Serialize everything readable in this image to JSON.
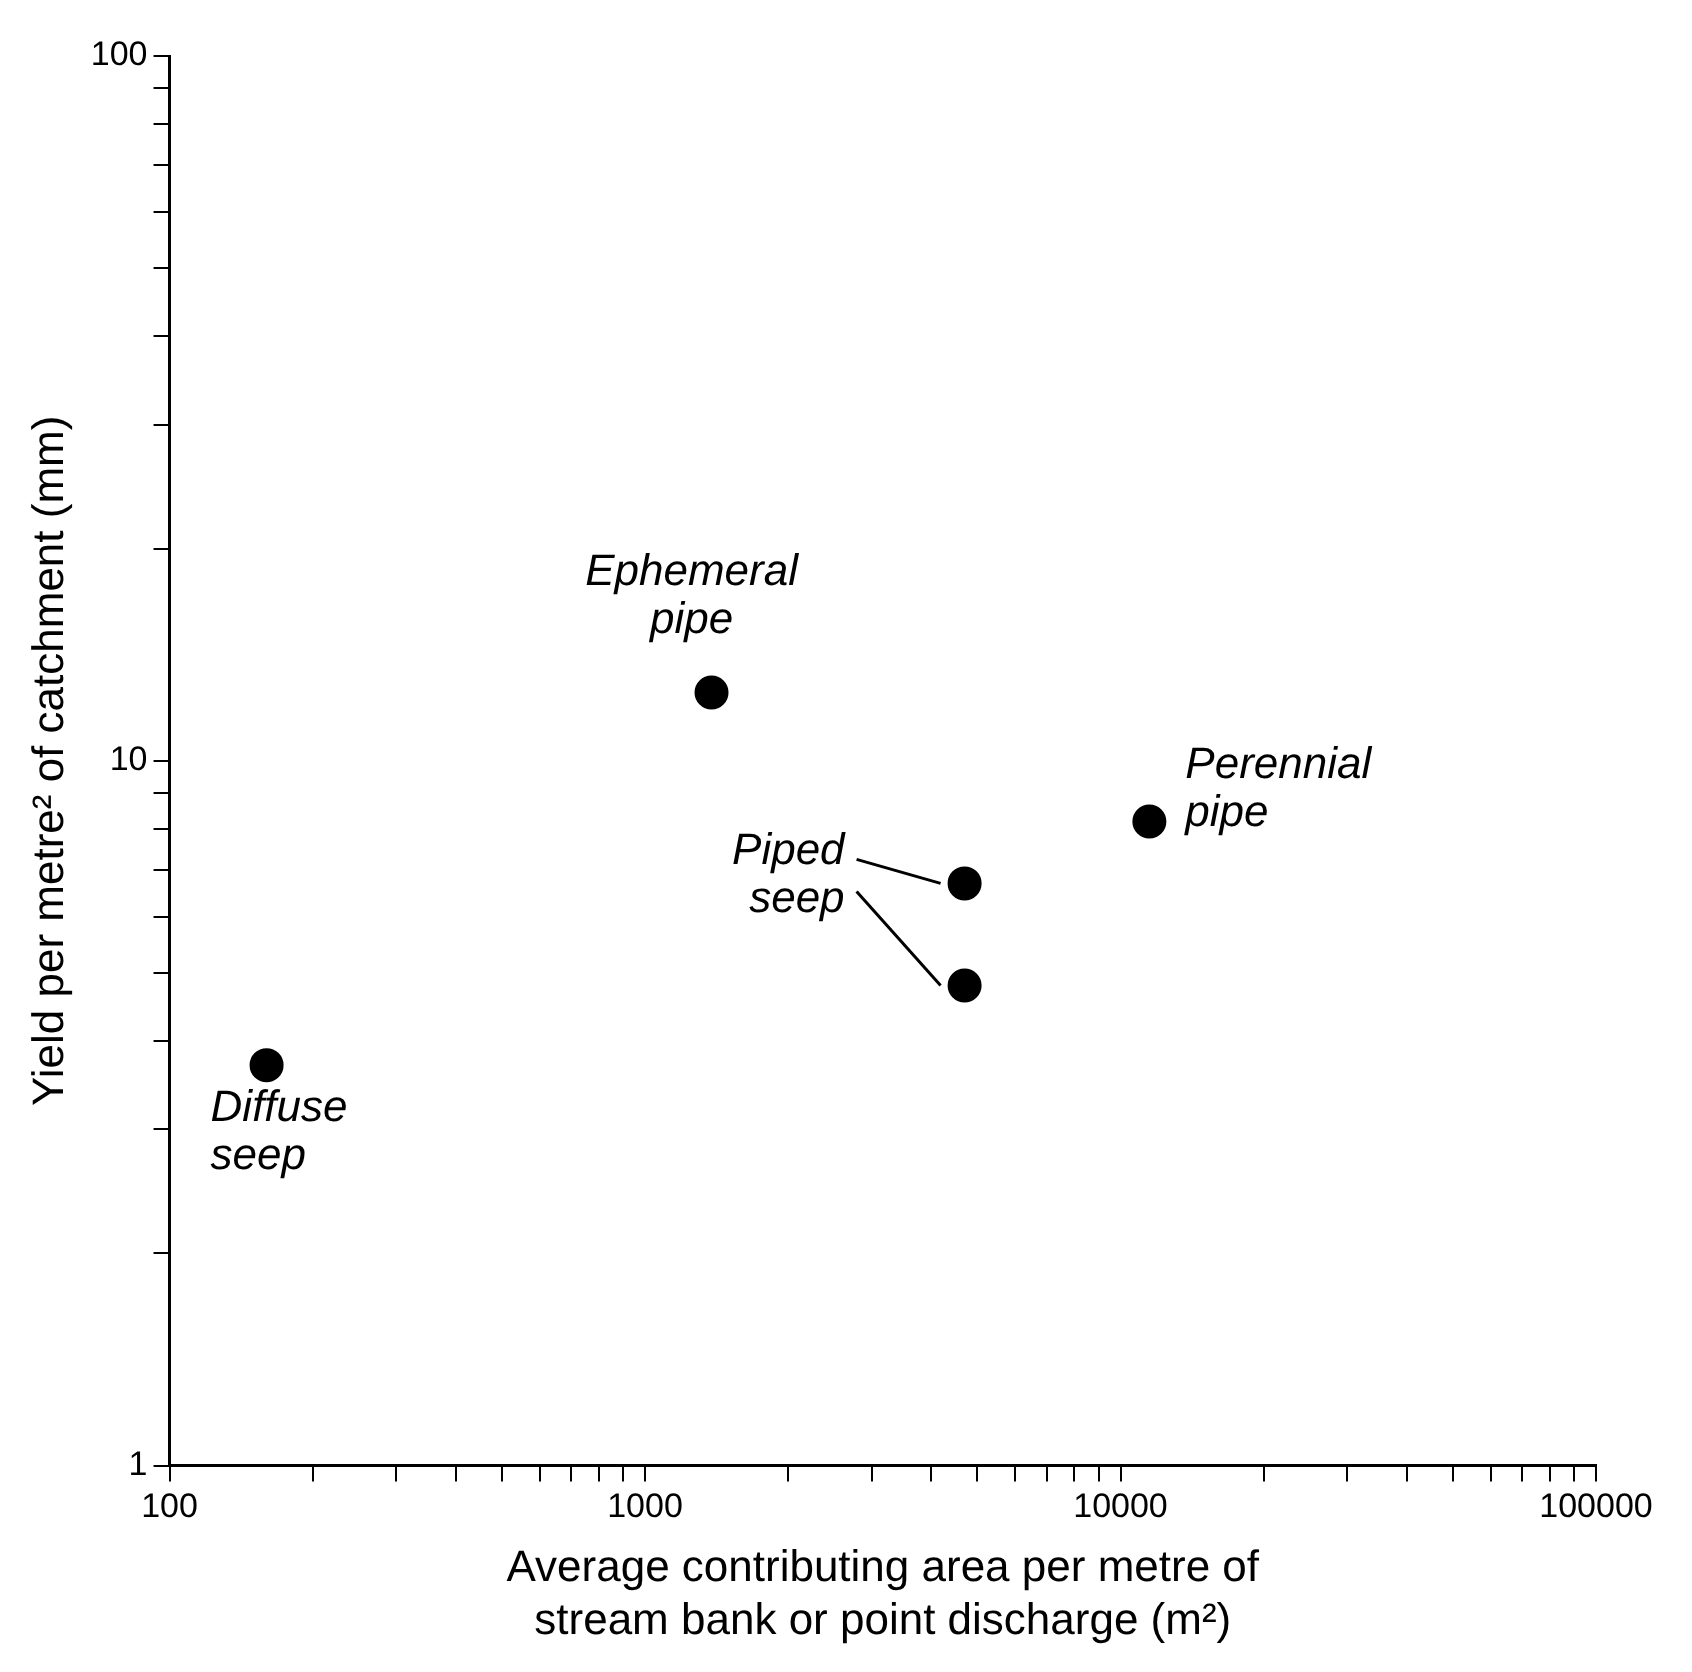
{
  "chart_data": {
    "type": "scatter",
    "xlabel": "Average contributing area per metre of stream bank or point discharge (m²)",
    "ylabel": "Yield per metre² of catchment (mm)",
    "x": [
      160,
      1380,
      4700,
      4700,
      11500
    ],
    "values": [
      3.7,
      12.5,
      6.7,
      4.8,
      8.2
    ],
    "color": "#000000",
    "marker": "circle",
    "log": "xy",
    "grid": false,
    "legend": false,
    "xlim": [
      100,
      100000
    ],
    "ylim": [
      1,
      100
    ],
    "xticks": [
      100,
      {
        "value": 200,
        "label": null
      },
      {
        "value": 300,
        "label": null
      },
      {
        "value": 400,
        "label": null
      },
      {
        "value": 500,
        "label": null
      },
      {
        "value": 600,
        "label": null
      },
      {
        "value": 700,
        "label": null
      },
      {
        "value": 800,
        "label": null
      },
      {
        "value": 900,
        "label": null
      },
      1000,
      {
        "value": 2000,
        "label": null
      },
      {
        "value": 3000,
        "label": null
      },
      {
        "value": 4000,
        "label": null
      },
      {
        "value": 5000,
        "label": null
      },
      {
        "value": 6000,
        "label": null
      },
      {
        "value": 7000,
        "label": null
      },
      {
        "value": 8000,
        "label": null
      },
      {
        "value": 9000,
        "label": null
      },
      10000,
      {
        "value": 20000,
        "label": null
      },
      {
        "value": 30000,
        "label": null
      },
      {
        "value": 40000,
        "label": null
      },
      {
        "value": 50000,
        "label": null
      },
      {
        "value": 60000,
        "label": null
      },
      {
        "value": 70000,
        "label": null
      },
      {
        "value": 80000,
        "label": null
      },
      {
        "value": 90000,
        "label": null
      },
      100000
    ],
    "yticks": [
      1,
      {
        "value": 2,
        "label": null
      },
      {
        "value": 3,
        "label": null
      },
      {
        "value": 4,
        "label": null
      },
      {
        "value": 5,
        "label": null
      },
      {
        "value": 6,
        "label": null
      },
      {
        "value": 7,
        "label": null
      },
      {
        "value": 8,
        "label": null
      },
      {
        "value": 9,
        "label": null
      },
      10,
      {
        "value": 20,
        "label": null
      },
      {
        "value": 30,
        "label": null
      },
      {
        "value": 40,
        "label": null
      },
      {
        "value": 50,
        "label": null
      },
      {
        "value": 60,
        "label": null
      },
      {
        "value": 70,
        "label": null
      },
      {
        "value": 80,
        "label": null
      },
      {
        "value": 90,
        "label": null
      },
      100
    ],
    "annotations": [
      {
        "text": "Diffuse seep",
        "x": 160,
        "y": 3.7
      },
      {
        "text": "Ephemeral pipe",
        "x": 1380,
        "y": 12.5
      },
      {
        "text": "Piped seep",
        "x": 4700,
        "y": 6.7
      },
      {
        "text": "Perennial pipe",
        "x": 11500,
        "y": 8.2
      }
    ]
  }
}
